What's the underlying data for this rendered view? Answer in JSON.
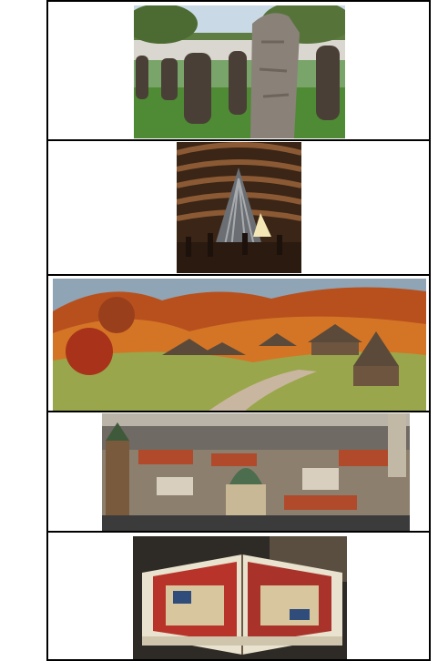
{
  "document": {
    "type": "photo-strip",
    "panel_count": 5,
    "panels": [
      {
        "subject": "stone-idols-park"
      },
      {
        "subject": "underground-cave-sanctuary"
      },
      {
        "subject": "autumn-village-thatched-huts"
      },
      {
        "subject": "old-city-rooftops-panorama"
      },
      {
        "subject": "illuminated-open-manuscript"
      }
    ]
  },
  "colors": {
    "border": "#000000",
    "page_background": "#ffffff"
  }
}
